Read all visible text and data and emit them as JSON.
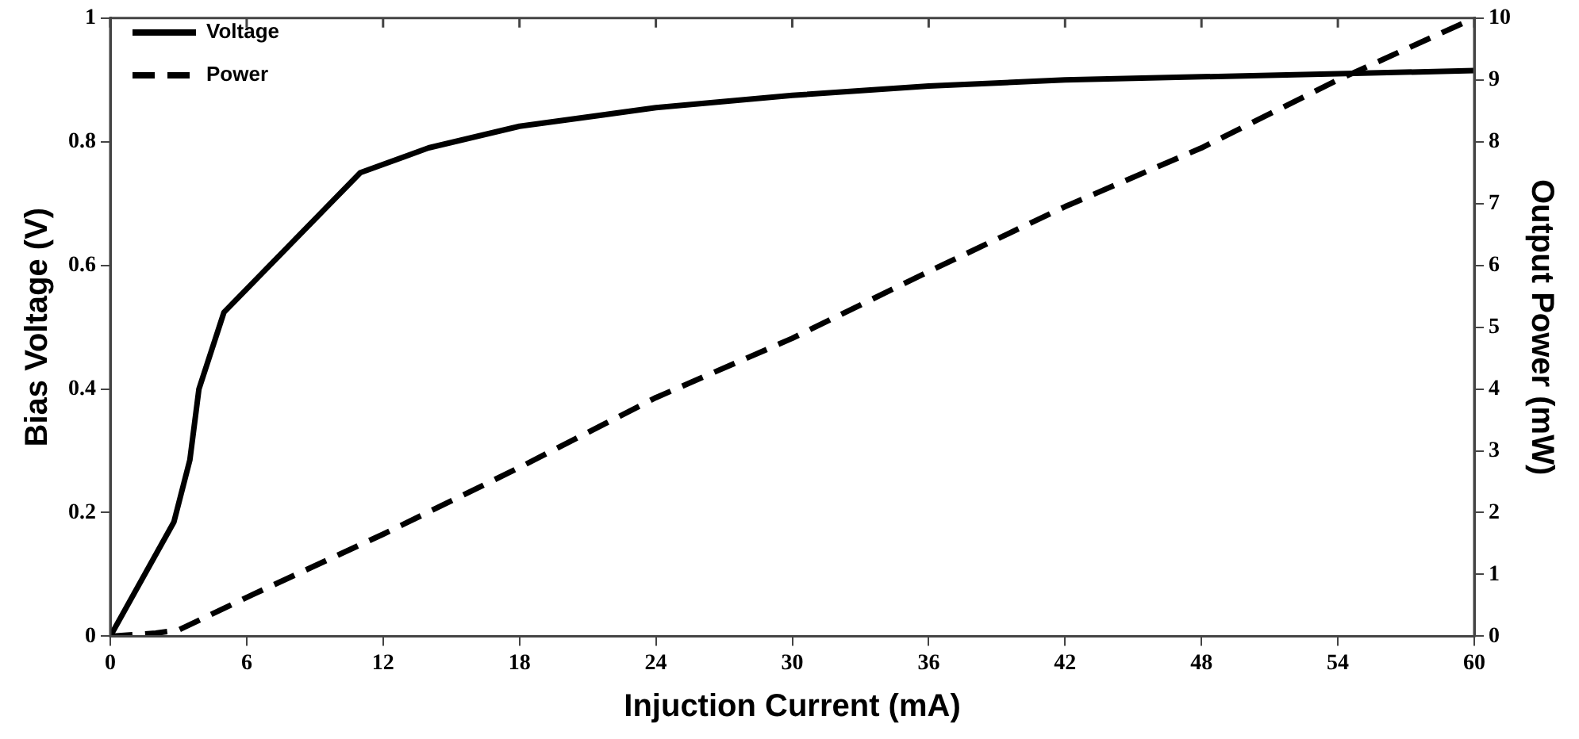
{
  "chart_data": {
    "type": "line",
    "xlabel": "Injuction Current (mA)",
    "ylabel": "Bias Voltage (V)",
    "y2label": "Output Power (mW)",
    "xlim": [
      0,
      60
    ],
    "xticks": [
      0,
      6,
      12,
      18,
      24,
      30,
      36,
      42,
      48,
      54,
      60
    ],
    "ylim": [
      0,
      1
    ],
    "yticks": [
      0,
      0.2,
      0.4,
      0.6,
      0.8,
      1
    ],
    "y2lim": [
      0,
      10
    ],
    "y2ticks": [
      0,
      1,
      2,
      3,
      4,
      5,
      6,
      7,
      8,
      9,
      10
    ],
    "grid": false,
    "legend": "top left",
    "marker": "none",
    "series": [
      {
        "name": "Voltage",
        "color": "#000000",
        "line_style": "solid",
        "x": [
          0,
          2.8,
          3.5,
          3.9,
          5,
          11,
          14,
          18,
          24,
          30,
          36,
          42,
          48,
          54,
          60
        ],
        "values": [
          0,
          0.185,
          0.285,
          0.4,
          0.524,
          0.75,
          0.79,
          0.825,
          0.855,
          0.875,
          0.89,
          0.9,
          0.905,
          0.91,
          0.915
        ]
      },
      {
        "name": "Power",
        "color": "#000000",
        "line_style": "dashed",
        "axis": "y2",
        "x": [
          0,
          2,
          3,
          6.3,
          12,
          18,
          24,
          30,
          36,
          42,
          48,
          54,
          60
        ],
        "values": [
          0,
          0.05,
          0.1,
          0.68,
          1.65,
          2.73,
          3.86,
          4.82,
          5.9,
          6.95,
          7.9,
          9.0,
          10
        ]
      }
    ]
  }
}
